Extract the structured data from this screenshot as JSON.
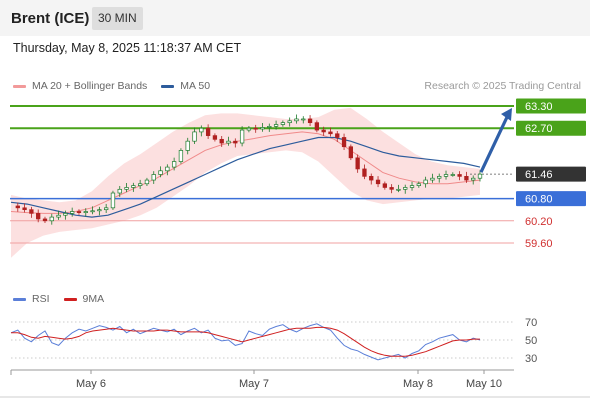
{
  "header": {
    "instrument": "Brent (ICE)",
    "timeframe": "30 MIN",
    "timestamp": "Thursday, May 8, 2025 11:18:37 AM CET"
  },
  "legend": {
    "items": [
      {
        "label": "MA 20 + Bollinger Bands",
        "color": "#f29a9a"
      },
      {
        "label": "MA 50",
        "color": "#2d5c9c"
      }
    ],
    "copyright": "Research © 2025 Trading Central"
  },
  "colors": {
    "resistance": "#4aa31a",
    "support_main": "#3a6fd8",
    "support_secondary": "#f0a0a0",
    "bollinger": "#fcdada",
    "ma20": "#f08a8a",
    "ma50": "#2d5c9c",
    "candle_up": "#1a7a2a",
    "candle_down": "#b02020",
    "arrow": "#2f5fa8",
    "current_price_bg": "#333333",
    "rsi": "#5b7fd8",
    "rsi_ma": "#d02020"
  },
  "chart_data": [
    {
      "type": "candlestick",
      "x_ticks": [
        "May 6",
        "May 7",
        "May 8",
        "May 10"
      ],
      "ylim": [
        59.0,
        63.5
      ],
      "levels": [
        {
          "value": 63.3,
          "label": "63.30",
          "kind": "resistance"
        },
        {
          "value": 62.7,
          "label": "62.70",
          "kind": "resistance"
        },
        {
          "value": 61.46,
          "label": "61.46",
          "kind": "current"
        },
        {
          "value": 60.8,
          "label": "60.80",
          "kind": "support_main"
        },
        {
          "value": 60.2,
          "label": "60.20",
          "kind": "support_secondary"
        },
        {
          "value": 59.6,
          "label": "59.60",
          "kind": "support_secondary"
        }
      ],
      "projection": {
        "from": 61.46,
        "to": 63.3
      },
      "price_path": [
        60.6,
        60.55,
        60.5,
        60.4,
        60.25,
        60.2,
        60.3,
        60.35,
        60.4,
        60.45,
        60.42,
        60.45,
        60.47,
        60.5,
        60.55,
        60.95,
        61.05,
        61.1,
        61.15,
        61.2,
        61.3,
        61.45,
        61.55,
        61.65,
        61.8,
        62.1,
        62.35,
        62.6,
        62.7,
        62.5,
        62.4,
        62.3,
        62.35,
        62.3,
        62.65,
        62.7,
        62.68,
        62.72,
        62.75,
        62.8,
        62.85,
        62.9,
        62.95,
        62.95,
        62.85,
        62.65,
        62.6,
        62.55,
        62.45,
        62.2,
        61.9,
        61.6,
        61.4,
        61.3,
        61.2,
        61.1,
        61.05,
        61.05,
        61.1,
        61.15,
        61.2,
        61.3,
        61.35,
        61.4,
        61.45,
        61.45,
        61.4,
        61.3,
        61.35,
        61.46
      ],
      "ma20": [
        60.45,
        60.42,
        60.4,
        60.4,
        60.45,
        60.55,
        60.75,
        60.95,
        61.15,
        61.35,
        61.6,
        61.85,
        62.1,
        62.25,
        62.35,
        62.42,
        62.5,
        62.55,
        62.6,
        62.55,
        62.4,
        62.1,
        61.8,
        61.5,
        61.35,
        61.25,
        61.2,
        61.2,
        61.25,
        61.3
      ],
      "ma50": [
        60.7,
        60.65,
        60.55,
        60.45,
        60.35,
        60.3,
        60.35,
        60.5,
        60.65,
        60.85,
        61.05,
        61.25,
        61.45,
        61.65,
        61.85,
        62.0,
        62.15,
        62.25,
        62.35,
        62.45,
        62.45,
        62.35,
        62.2,
        62.05,
        61.95,
        61.9,
        61.85,
        61.8,
        61.75,
        61.65
      ],
      "bb_upper": [
        60.9,
        60.8,
        60.75,
        60.7,
        60.75,
        61.0,
        61.4,
        61.75,
        62.0,
        62.3,
        62.6,
        62.85,
        63.05,
        63.1,
        63.1,
        63.05,
        63.0,
        62.95,
        62.95,
        63.0,
        63.2,
        63.25,
        62.95,
        62.6,
        62.3,
        62.0,
        61.8,
        61.7,
        61.65,
        61.6
      ],
      "bb_lower": [
        59.2,
        59.6,
        59.8,
        59.9,
        59.95,
        60.0,
        60.1,
        60.2,
        60.35,
        60.55,
        60.85,
        61.15,
        61.5,
        61.75,
        61.95,
        62.0,
        62.05,
        62.1,
        62.05,
        61.8,
        61.4,
        61.0,
        60.75,
        60.65,
        60.7,
        60.75,
        60.8,
        60.8,
        60.85,
        60.9
      ]
    },
    {
      "type": "line",
      "series": [
        {
          "name": "RSI",
          "color": "#5b7fd8"
        },
        {
          "name": "9MA",
          "color": "#d02020"
        }
      ],
      "ylim": [
        20,
        80
      ],
      "y_ticks": [
        70,
        50,
        30
      ],
      "x_ticks": [
        "May 6",
        "May 7",
        "May 8",
        "May 10"
      ],
      "rsi": [
        58,
        61,
        52,
        48,
        55,
        60,
        47,
        44,
        52,
        58,
        62,
        60,
        63,
        66,
        64,
        61,
        65,
        58,
        62,
        57,
        60,
        63,
        61,
        59,
        62,
        56,
        60,
        63,
        58,
        61,
        52,
        49,
        50,
        44,
        46,
        60,
        57,
        55,
        62,
        65,
        67,
        62,
        59,
        63,
        66,
        68,
        64,
        61,
        52,
        44,
        40,
        38,
        34,
        31,
        28,
        30,
        32,
        34,
        30,
        35,
        38,
        45,
        48,
        52,
        54,
        56,
        50,
        48,
        52,
        50
      ],
      "ma9": [
        58,
        58,
        56,
        53,
        52,
        54,
        53,
        52,
        51,
        52,
        54,
        58,
        60,
        61,
        62,
        63,
        62,
        61,
        60,
        60,
        60,
        60,
        61,
        61,
        60,
        59,
        59,
        59,
        59,
        58,
        56,
        54,
        52,
        50,
        48,
        50,
        52,
        54,
        56,
        58,
        60,
        62,
        63,
        63,
        63,
        64,
        64,
        63,
        61,
        57,
        52,
        47,
        42,
        38,
        35,
        33,
        32,
        32,
        32,
        33,
        35,
        37,
        40,
        43,
        46,
        49,
        50,
        50,
        51,
        51
      ]
    }
  ]
}
